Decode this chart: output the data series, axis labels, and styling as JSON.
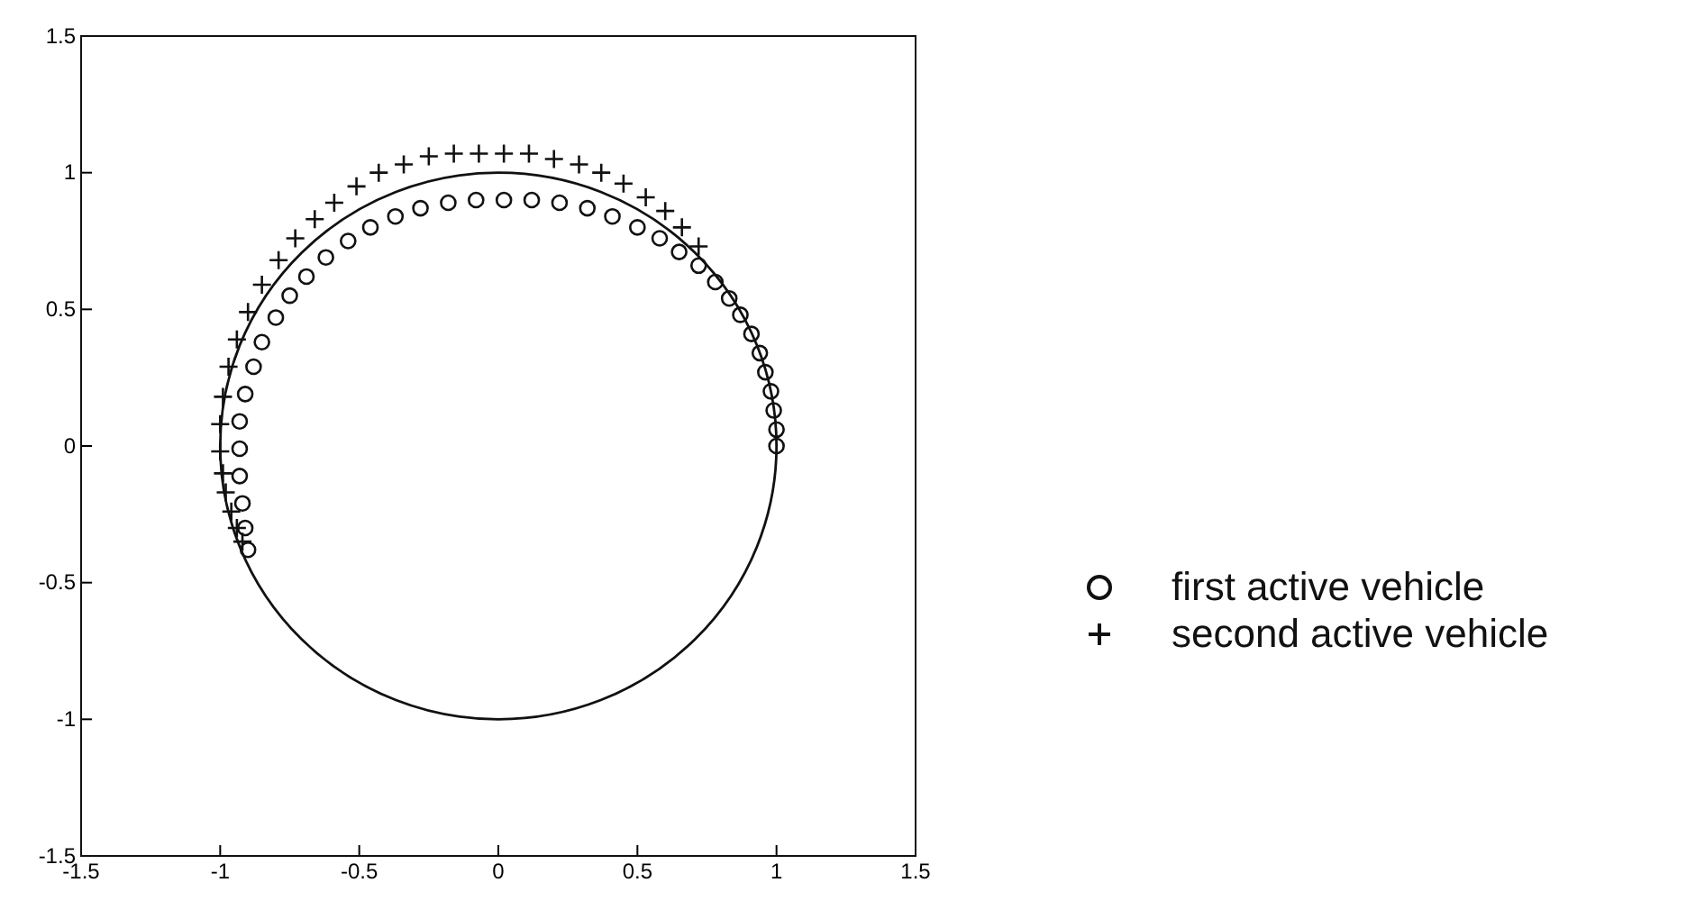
{
  "chart_data": {
    "type": "scatter",
    "xlim": [
      -1.5,
      1.5
    ],
    "ylim": [
      -1.5,
      1.5
    ],
    "xticks": [
      -1.5,
      -1,
      -0.5,
      0,
      0.5,
      1,
      1.5
    ],
    "yticks": [
      -1.5,
      -1,
      -0.5,
      0,
      0.5,
      1,
      1.5
    ],
    "legend": "right",
    "series": [
      {
        "name": "first active vehicle",
        "color": "#111111",
        "marker": "circle",
        "x": [
          1.0,
          1.0,
          0.99,
          0.98,
          0.96,
          0.94,
          0.91,
          0.87,
          0.83,
          0.78,
          0.72,
          0.65,
          0.58,
          0.5,
          0.41,
          0.32,
          0.22,
          0.12,
          0.02,
          -0.08,
          -0.18,
          -0.28,
          -0.37,
          -0.46,
          -0.54,
          -0.62,
          -0.69,
          -0.75,
          -0.8,
          -0.85,
          -0.88,
          -0.91,
          -0.93,
          -0.93,
          -0.93,
          -0.92,
          -0.91,
          -0.9
        ],
        "values": [
          0,
          0.06,
          0.13,
          0.2,
          0.27,
          0.34,
          0.41,
          0.48,
          0.54,
          0.6,
          0.66,
          0.71,
          0.76,
          0.8,
          0.84,
          0.87,
          0.89,
          0.9,
          0.9,
          0.9,
          0.89,
          0.87,
          0.84,
          0.8,
          0.75,
          0.69,
          0.62,
          0.55,
          0.47,
          0.38,
          0.29,
          0.19,
          0.09,
          -0.01,
          -0.11,
          -0.21,
          -0.3,
          -0.38
        ]
      },
      {
        "name": "second active vehicle",
        "color": "#111111",
        "marker": "cross",
        "x": [
          0.72,
          0.66,
          0.6,
          0.53,
          0.45,
          0.37,
          0.29,
          0.2,
          0.11,
          0.02,
          -0.07,
          -0.16,
          -0.25,
          -0.34,
          -0.43,
          -0.51,
          -0.59,
          -0.66,
          -0.73,
          -0.79,
          -0.85,
          -0.9,
          -0.94,
          -0.97,
          -0.99,
          -1.0,
          -1.0,
          -0.99,
          -0.98,
          -0.96,
          -0.94,
          -0.92
        ],
        "values": [
          0.73,
          0.8,
          0.86,
          0.91,
          0.96,
          1.0,
          1.03,
          1.05,
          1.07,
          1.07,
          1.07,
          1.07,
          1.06,
          1.03,
          1.0,
          0.95,
          0.89,
          0.83,
          0.76,
          0.68,
          0.59,
          0.49,
          0.39,
          0.29,
          0.18,
          0.08,
          -0.02,
          -0.1,
          -0.17,
          -0.24,
          -0.3,
          -0.35
        ]
      }
    ]
  }
}
